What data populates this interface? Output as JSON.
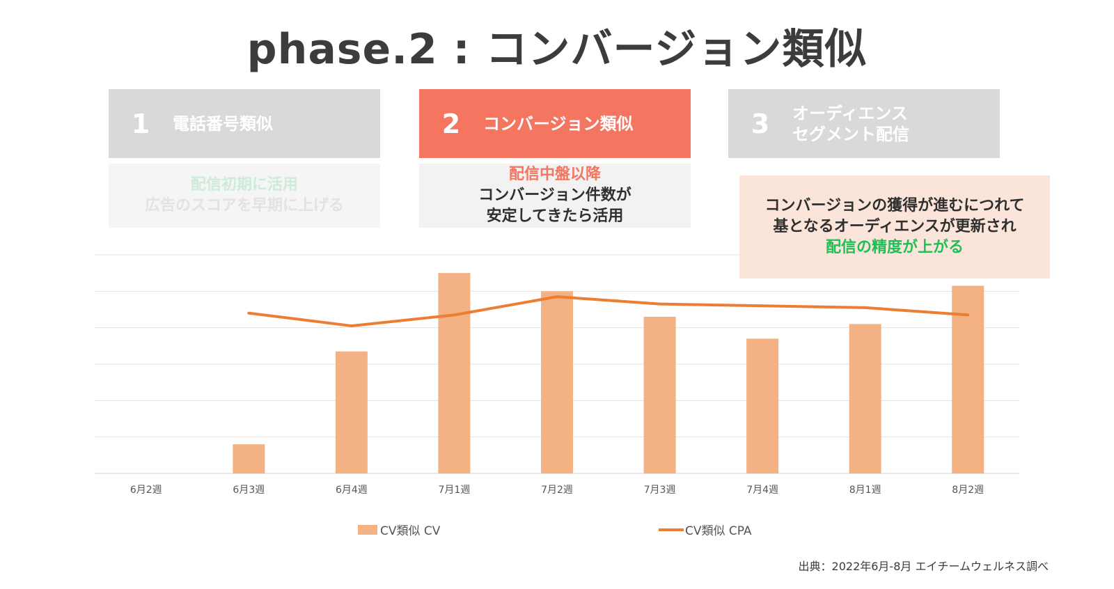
{
  "title": "phase.2 : コンバージョン類似",
  "steps": [
    {
      "num": "1",
      "label": "電話番号類似"
    },
    {
      "num": "2",
      "label": "コンバージョン類似"
    },
    {
      "num": "3",
      "label_line1": "オーディエンス",
      "label_line2": "セグメント配信"
    }
  ],
  "desc1": {
    "line1": "配信初期に活用",
    "line2": "広告のスコアを早期に上げる"
  },
  "desc2": {
    "line1": "配信中盤以降",
    "line2": "コンバージョン件数が",
    "line3": "安定してきたら活用"
  },
  "callout": {
    "line1": "コンバージョンの獲得が進むにつれて",
    "line2": "基となるオーディエンスが更新され",
    "line3": "配信の精度が上がる"
  },
  "chart_data": {
    "type": "bar",
    "categories": [
      "6月2週",
      "6月3週",
      "6月4週",
      "7月1週",
      "7月2週",
      "7月3週",
      "7月4週",
      "8月1週",
      "8月2週"
    ],
    "series": [
      {
        "name": "CV類似 CV",
        "type": "bar",
        "color": "#f4b183",
        "values": [
          0,
          8,
          33.5,
          55,
          50,
          43,
          37,
          41,
          51.5
        ]
      },
      {
        "name": "CV類似 CPA",
        "type": "line",
        "color": "#ed7d31",
        "values": [
          null,
          44,
          40.5,
          43.5,
          48.5,
          46.5,
          46,
          45.5,
          43.5
        ]
      }
    ],
    "ylim": [
      0,
      60
    ],
    "grid": true,
    "legend": "bottom",
    "y_tick_labels": "hidden"
  },
  "source": "出典：2022年6月-8月 エイチームウェルネス調べ"
}
